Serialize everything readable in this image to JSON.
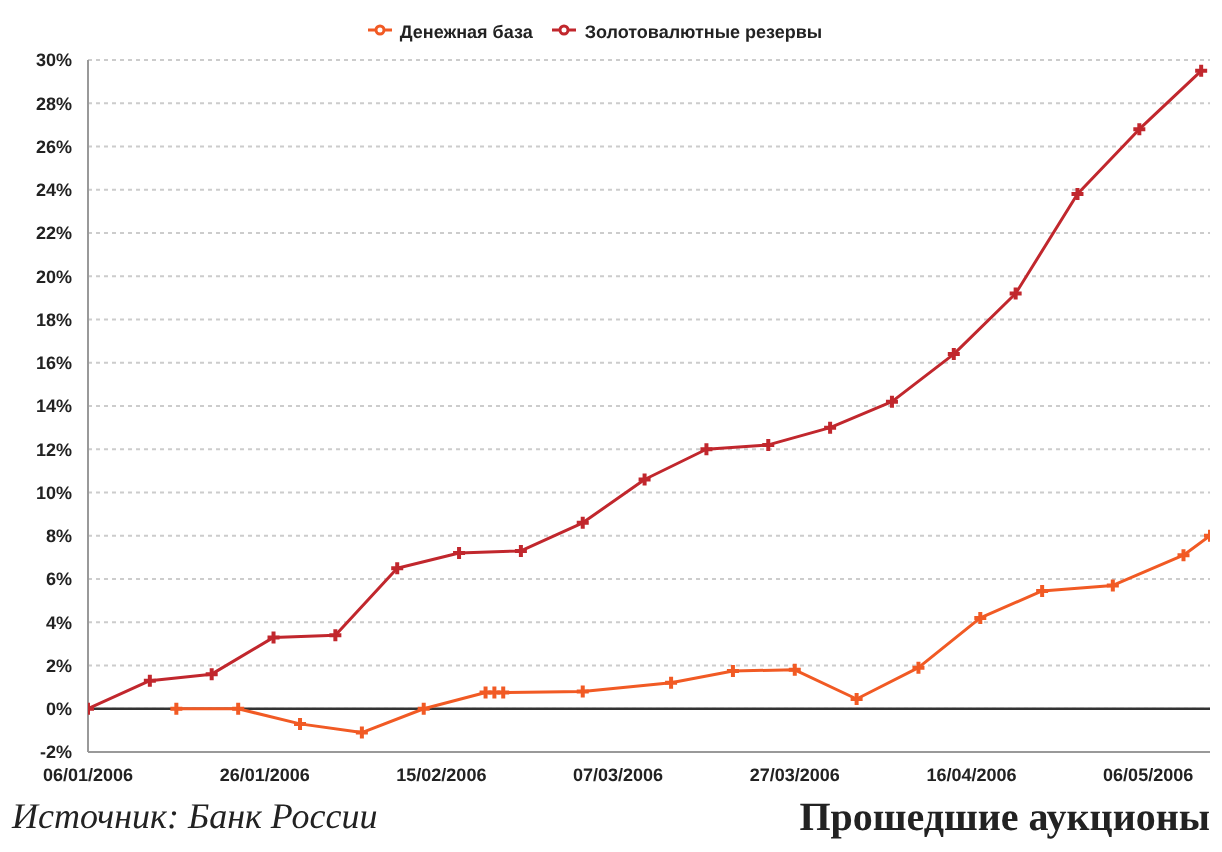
{
  "chart_data": {
    "type": "line",
    "series": [
      {
        "name": "Денежная база",
        "color": "#f15a24",
        "x": [
          "2006-01-16",
          "2006-01-23",
          "2006-01-30",
          "2006-02-06",
          "2006-02-13",
          "2006-02-20",
          "2006-02-21",
          "2006-02-22",
          "2006-03-03",
          "2006-03-13",
          "2006-03-20",
          "2006-03-27",
          "2006-04-03",
          "2006-04-10",
          "2006-04-17",
          "2006-04-24",
          "2006-05-02",
          "2006-05-10",
          "2006-05-13"
        ],
        "values": [
          0,
          0,
          -0.7,
          -1.1,
          0,
          0.75,
          0.75,
          0.75,
          0.8,
          1.2,
          1.75,
          1.8,
          0.45,
          1.9,
          4.2,
          5.45,
          5.7,
          7.1,
          8.0
        ]
      },
      {
        "name": "Золотовалютные резервы",
        "color": "#c1272d",
        "x": [
          "2006-01-06",
          "2006-01-13",
          "2006-01-20",
          "2006-01-27",
          "2006-02-03",
          "2006-02-10",
          "2006-02-17",
          "2006-02-24",
          "2006-03-03",
          "2006-03-10",
          "2006-03-17",
          "2006-03-24",
          "2006-03-31",
          "2006-04-07",
          "2006-04-14",
          "2006-04-21",
          "2006-04-28",
          "2006-05-05",
          "2006-05-12"
        ],
        "values": [
          0,
          1.3,
          1.6,
          3.3,
          3.4,
          6.5,
          7.2,
          7.3,
          8.6,
          10.6,
          12.0,
          12.2,
          13.0,
          14.2,
          16.4,
          19.2,
          23.8,
          26.8,
          29.5
        ]
      }
    ],
    "xlim": [
      "2006-01-06",
      "2006-05-13"
    ],
    "xticks": [
      {
        "value": "2006-01-06",
        "label": "06/01/2006"
      },
      {
        "value": "2006-01-26",
        "label": "26/01/2006"
      },
      {
        "value": "2006-02-15",
        "label": "15/02/2006"
      },
      {
        "value": "2006-03-07",
        "label": "07/03/2006"
      },
      {
        "value": "2006-03-27",
        "label": "27/03/2006"
      },
      {
        "value": "2006-04-16",
        "label": "16/04/2006"
      },
      {
        "value": "2006-05-06",
        "label": "06/05/2006"
      }
    ],
    "ylim": [
      -2,
      30
    ],
    "yticks": [
      {
        "value": -2,
        "label": "-2%"
      },
      {
        "value": 0,
        "label": "0%"
      },
      {
        "value": 2,
        "label": "2%"
      },
      {
        "value": 4,
        "label": "4%"
      },
      {
        "value": 6,
        "label": "6%"
      },
      {
        "value": 8,
        "label": "8%"
      },
      {
        "value": 10,
        "label": "10%"
      },
      {
        "value": 12,
        "label": "12%"
      },
      {
        "value": 14,
        "label": "14%"
      },
      {
        "value": 16,
        "label": "16%"
      },
      {
        "value": 18,
        "label": "18%"
      },
      {
        "value": 20,
        "label": "20%"
      },
      {
        "value": 22,
        "label": "22%"
      },
      {
        "value": 24,
        "label": "24%"
      },
      {
        "value": 26,
        "label": "26%"
      },
      {
        "value": 28,
        "label": "28%"
      },
      {
        "value": 30,
        "label": "30%"
      }
    ],
    "ref_lines": [
      {
        "axis": "y",
        "value": 0,
        "color": "#333333"
      }
    ],
    "grid": "y",
    "legend": "top",
    "marker": "cross",
    "line_style": "solid",
    "annotations": [
      "Источник: Банк России",
      "Прошедшие аукционы"
    ]
  }
}
